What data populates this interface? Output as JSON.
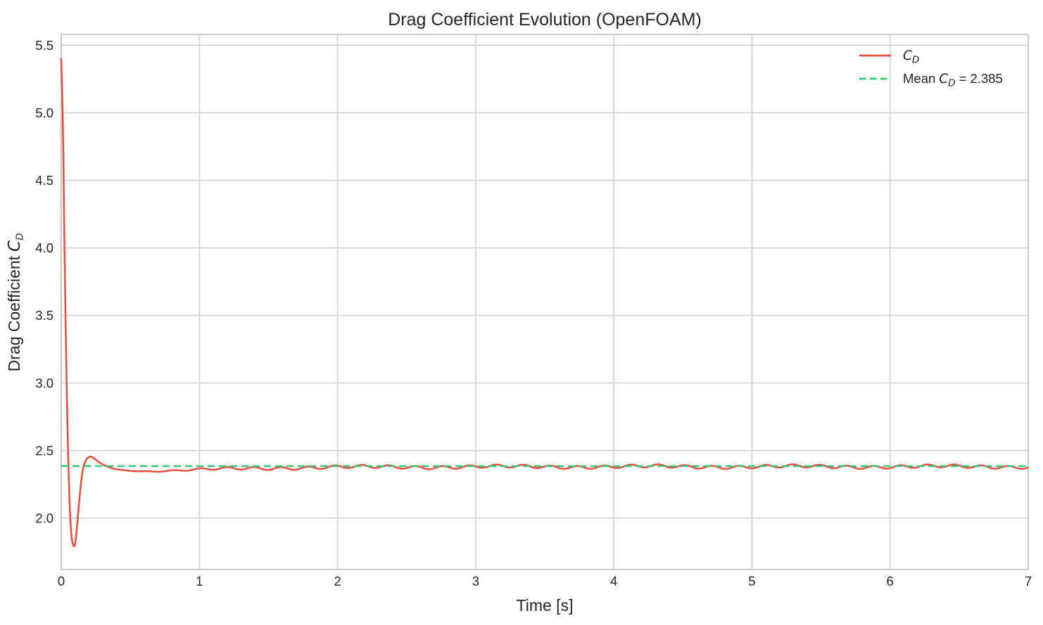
{
  "figure": {
    "background_color": "#ffffff",
    "text_color": "#262626",
    "grid_color": "#d4d4d4",
    "spine_color": "#c6c6c6",
    "ylabel_parts": {
      "prefix": "Drag Coefficient",
      "sym": "C",
      "sub": "D"
    }
  },
  "legend": {
    "position": "upper right",
    "frame": false,
    "entries": [
      {
        "label": "C_D",
        "color": "#e74c3c",
        "dashed": false,
        "parts": {
          "prefix": "",
          "sym": "C",
          "sub": "D",
          "suffix": ""
        }
      },
      {
        "label": "Mean C_D = 2.385",
        "color": "#2ecc71",
        "dashed": true,
        "parts": {
          "prefix": "Mean",
          "sym": "C",
          "sub": "D",
          "suffix": "= 2.385"
        }
      }
    ]
  },
  "chart_data": {
    "type": "line",
    "title": "Drag Coefficient Evolution (OpenFOAM)",
    "xlabel": "Time [s]",
    "ylabel": "Drag Coefficient C_D",
    "xlim": [
      0,
      7
    ],
    "ylim": [
      1.62,
      5.58
    ],
    "xticks": [
      0,
      1,
      2,
      3,
      4,
      5,
      6,
      7
    ],
    "yticks": [
      2.0,
      2.5,
      3.0,
      3.5,
      4.0,
      4.5,
      5.0,
      5.5
    ],
    "grid": true,
    "legend_position": "upper right",
    "series": [
      {
        "name": "C_D",
        "color": "#e74c3c",
        "line_style": "solid",
        "line_width": 2.5,
        "description": "Drag coefficient vs time: initial spike 5.40 at t=0, undershoot to 1.80 at t~0.09, overshoot to 2.46 at t~0.21, settles near 2.35 then oscillates about 2.38",
        "keypoints": [
          [
            0.0,
            5.4
          ],
          [
            0.012,
            4.9
          ],
          [
            0.025,
            3.9
          ],
          [
            0.04,
            2.95
          ],
          [
            0.055,
            2.28
          ],
          [
            0.07,
            1.92
          ],
          [
            0.085,
            1.805
          ],
          [
            0.1,
            1.81
          ],
          [
            0.115,
            1.95
          ],
          [
            0.135,
            2.18
          ],
          [
            0.155,
            2.35
          ],
          [
            0.18,
            2.43
          ],
          [
            0.21,
            2.455
          ],
          [
            0.24,
            2.44
          ],
          [
            0.28,
            2.41
          ],
          [
            0.33,
            2.383
          ],
          [
            0.4,
            2.362
          ],
          [
            0.5,
            2.351
          ],
          [
            0.63,
            2.346
          ],
          [
            0.78,
            2.35
          ],
          [
            0.95,
            2.357
          ],
          [
            1.15,
            2.363
          ],
          [
            1.4,
            2.369
          ],
          [
            1.7,
            2.374
          ],
          [
            2.1,
            2.377
          ],
          [
            2.6,
            2.379
          ],
          [
            3.2,
            2.38
          ],
          [
            4.0,
            2.381
          ],
          [
            5.0,
            2.381
          ],
          [
            6.0,
            2.381
          ],
          [
            7.0,
            2.381
          ]
        ],
        "oscillation": {
          "amplitude": 0.011,
          "period": 0.195,
          "ramp_start": 0.3,
          "ramp_end": 1.5,
          "modulation_amplitude": 0.006,
          "modulation_period": 1.05
        }
      },
      {
        "name": "Mean C_D = 2.385",
        "color": "#2ecc71",
        "line_style": "dashed",
        "line_width": 2.5,
        "mean_value": 2.385
      }
    ]
  }
}
